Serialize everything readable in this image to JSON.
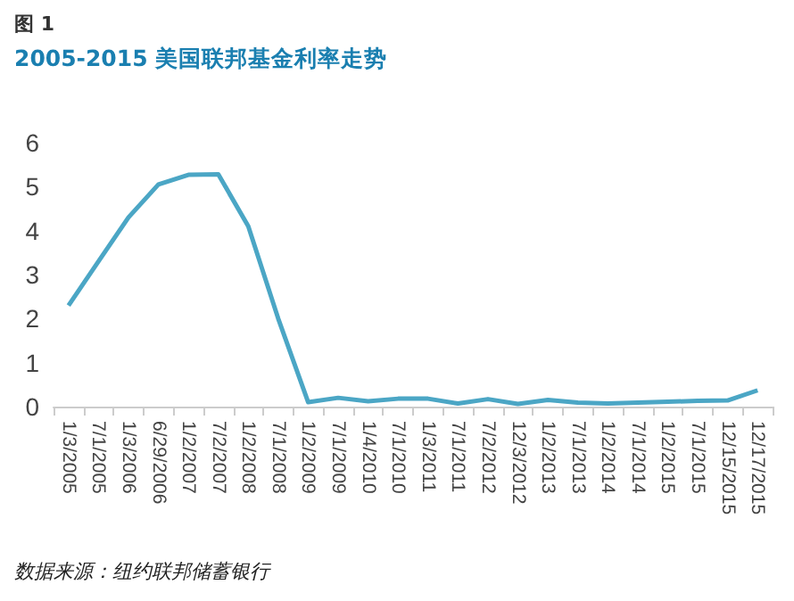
{
  "chart_data": {
    "type": "line",
    "title": "2005-2015 美国联邦基金利率走势",
    "annotations": [
      "图 1",
      "数据来源：纽约联邦储蓄银行"
    ],
    "categories": [
      "1/3/2005",
      "7/1/2005",
      "1/3/2006",
      "6/29/2006",
      "1/2/2007",
      "7/2/2007",
      "1/2/2008",
      "7/1/2008",
      "1/2/2009",
      "7/1/2009",
      "1/4/2010",
      "7/1/2010",
      "1/3/2011",
      "7/1/2011",
      "7/2/2012",
      "12/3/2012",
      "1/2/2013",
      "7/1/2013",
      "1/2/2014",
      "7/1/2014",
      "1/2/2015",
      "7/1/2015",
      "12/15/2015",
      "12/17/2015"
    ],
    "series": [
      {
        "color": "#4ba6c5",
        "values": [
          2.3,
          3.3,
          4.3,
          5.05,
          5.27,
          5.28,
          4.1,
          2.0,
          0.1,
          0.2,
          0.12,
          0.18,
          0.18,
          0.07,
          0.17,
          0.06,
          0.15,
          0.09,
          0.07,
          0.09,
          0.11,
          0.13,
          0.14,
          0.37
        ]
      }
    ],
    "ylim": [
      0,
      6
    ],
    "yticks": [
      0,
      1,
      2,
      3,
      4,
      5,
      6
    ],
    "grid": false,
    "marker": "none",
    "line_style": "solid"
  }
}
